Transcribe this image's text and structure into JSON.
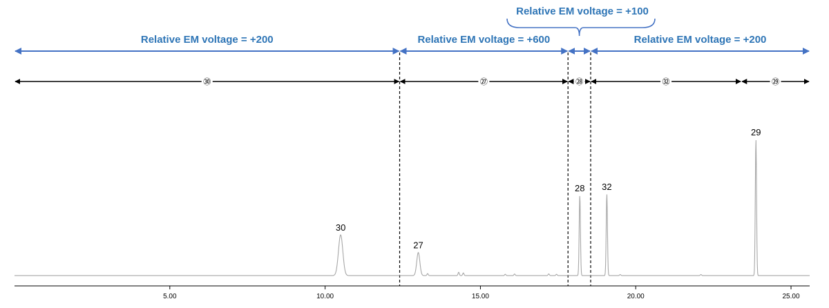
{
  "chart_data": {
    "type": "line",
    "title": "",
    "xlabel": "",
    "ylabel": "",
    "xlim": [
      0,
      25.6
    ],
    "ylim": [
      0,
      100
    ],
    "grid": false,
    "xticks": [
      5,
      10,
      15,
      20,
      25
    ],
    "xtick_labels": [
      "5.00",
      "10.00",
      "15.00",
      "20.00",
      "25.00"
    ],
    "line_color": "#a6a6a6",
    "baseline": 3,
    "peaks": [
      {
        "label": "30",
        "x": 10.5,
        "height": 30,
        "width": 0.07
      },
      {
        "label": "27",
        "x": 13.0,
        "height": 17,
        "width": 0.05
      },
      {
        "label": "28",
        "x": 18.2,
        "height": 59,
        "width": 0.02
      },
      {
        "label": "32",
        "x": 19.07,
        "height": 60,
        "width": 0.02
      },
      {
        "label": "29",
        "x": 23.87,
        "height": 100,
        "width": 0.02
      }
    ],
    "minor_peaks": [
      {
        "x": 13.3,
        "height": 1.5
      },
      {
        "x": 14.3,
        "height": 2.5
      },
      {
        "x": 14.45,
        "height": 2
      },
      {
        "x": 15.8,
        "height": 1
      },
      {
        "x": 16.1,
        "height": 1.2
      },
      {
        "x": 17.2,
        "height": 1.3
      },
      {
        "x": 17.45,
        "height": 1
      },
      {
        "x": 19.5,
        "height": 0.8
      },
      {
        "x": 22.1,
        "height": 0.8
      }
    ],
    "boundaries": [
      12.4,
      17.82,
      18.55
    ],
    "segments": [
      {
        "label": "㉚",
        "from": 0,
        "to": 12.4
      },
      {
        "label": "㉗",
        "from": 12.4,
        "to": 17.82
      },
      {
        "label": "㉘",
        "from": 17.82,
        "to": 18.55
      },
      {
        "label": "㉜",
        "from": 18.55,
        "to": 23.4
      },
      {
        "label": "㉙",
        "from": 23.4,
        "to": 25.6
      }
    ],
    "voltage_ranges": [
      {
        "label": "Relative EM voltage = +200",
        "from": 0,
        "to": 12.4
      },
      {
        "label": "Relative EM voltage = +600",
        "from": 12.4,
        "to": 17.82
      },
      {
        "label": "",
        "from": 17.82,
        "to": 18.55
      },
      {
        "label": "Relative EM voltage = +200",
        "from": 18.55,
        "to": 25.6
      }
    ],
    "voltage_callout": {
      "label": "Relative EM voltage = +100",
      "from": 17.82,
      "to": 18.55
    },
    "colors": {
      "voltage": "#4472c4",
      "voltage_text": "#2e75b6",
      "segment": "#000000"
    }
  }
}
